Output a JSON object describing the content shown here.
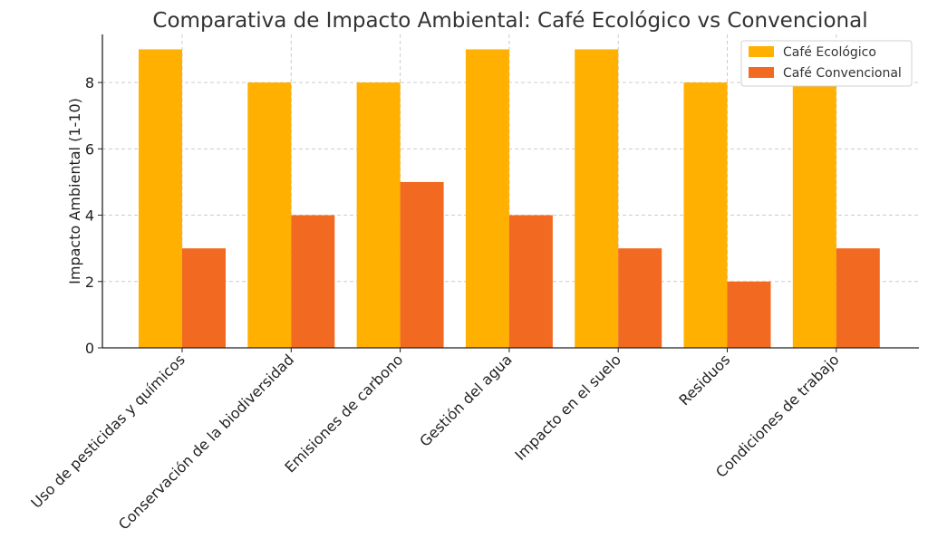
{
  "chart_data": {
    "type": "bar",
    "title": "Comparativa de Impacto Ambiental: Café Ecológico vs Convencional",
    "xlabel": "",
    "ylabel": "Impacto Ambiental (1-10)",
    "categories": [
      "Uso de pesticidas y químicos",
      "Conservación de la biodiversidad",
      "Emisiones de carbono",
      "Gestión del agua",
      "Impacto en el suelo",
      "Residuos",
      "Condiciones de trabajo"
    ],
    "series": [
      {
        "name": "Café Ecológico",
        "color": "#FFB000",
        "values": [
          9,
          8,
          8,
          9,
          9,
          8,
          8
        ]
      },
      {
        "name": "Café Convencional",
        "color": "#F26A21",
        "values": [
          3,
          4,
          5,
          4,
          3,
          2,
          3
        ]
      }
    ],
    "ylim": [
      0,
      9.45
    ],
    "yticks": [
      0,
      2,
      4,
      6,
      8
    ],
    "grid": true,
    "legend_position": "top-right"
  }
}
